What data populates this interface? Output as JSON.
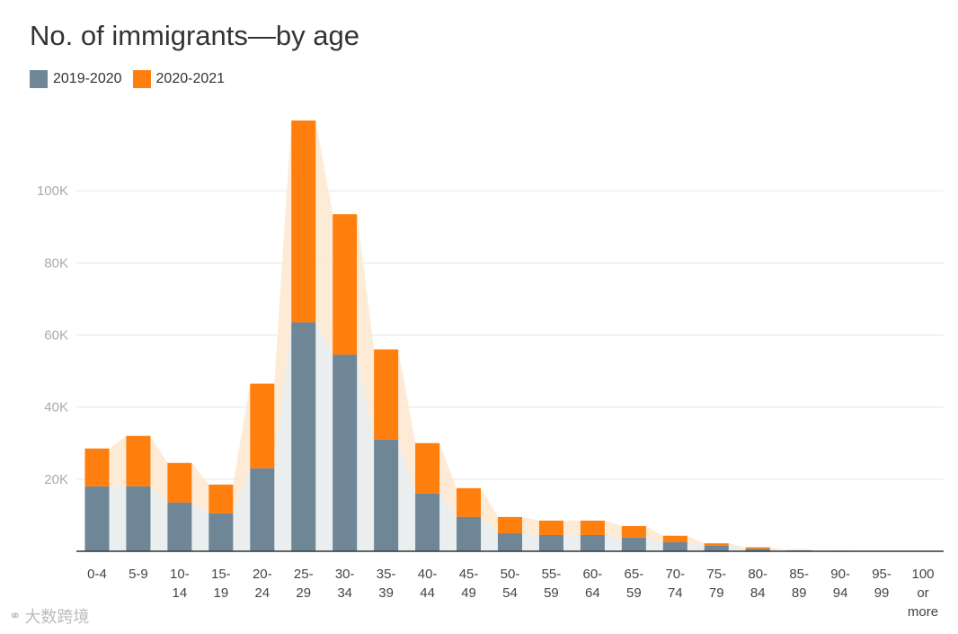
{
  "chart_data": {
    "type": "bar",
    "stacked": true,
    "title": "No. of immigrants—by age",
    "categories": [
      [
        "0-4"
      ],
      [
        "5-9"
      ],
      [
        "10-",
        "14"
      ],
      [
        "15-",
        "19"
      ],
      [
        "20-",
        "24"
      ],
      [
        "25-",
        "29"
      ],
      [
        "30-",
        "34"
      ],
      [
        "35-",
        "39"
      ],
      [
        "40-",
        "44"
      ],
      [
        "45-",
        "49"
      ],
      [
        "50-",
        "54"
      ],
      [
        "55-",
        "59"
      ],
      [
        "60-",
        "64"
      ],
      [
        "65-",
        "59"
      ],
      [
        "70-",
        "74"
      ],
      [
        "75-",
        "79"
      ],
      [
        "80-",
        "84"
      ],
      [
        "85-",
        "89"
      ],
      [
        "90-",
        "94"
      ],
      [
        "95-",
        "99"
      ],
      [
        "100",
        "or",
        "more"
      ]
    ],
    "series": [
      {
        "name": "2019-2020",
        "color": "#6e8696",
        "values": [
          18000,
          18000,
          13500,
          10500,
          23000,
          63500,
          54500,
          31000,
          16000,
          9500,
          5000,
          4500,
          4500,
          3800,
          2500,
          1500,
          700,
          200,
          100,
          50,
          20
        ]
      },
      {
        "name": "2020-2021",
        "color": "#ff7f0e",
        "values": [
          10500,
          14000,
          11000,
          8000,
          23500,
          56000,
          39000,
          25000,
          14000,
          8000,
          4500,
          4000,
          4000,
          3200,
          1800,
          700,
          400,
          100,
          50,
          20,
          10
        ]
      }
    ],
    "area_color": "#fde7cf",
    "area_under_color": "#e8eef2",
    "yticks": [
      20000,
      40000,
      60000,
      80000,
      100000
    ],
    "ytick_labels": [
      "20K",
      "40K",
      "60K",
      "80K",
      "100K"
    ],
    "ylim": [
      0,
      120000
    ],
    "grid": true,
    "legend_position": "top-left"
  },
  "watermark": "大数跨境"
}
